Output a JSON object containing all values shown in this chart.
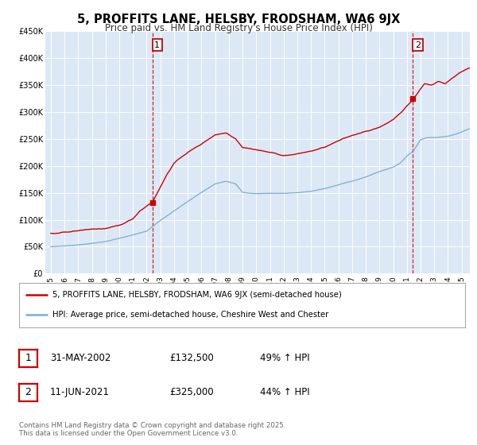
{
  "title": "5, PROFFITS LANE, HELSBY, FRODSHAM, WA6 9JX",
  "subtitle": "Price paid vs. HM Land Registry's House Price Index (HPI)",
  "background_color": "#ffffff",
  "plot_bg_color": "#dce8f5",
  "legend_label_red": "5, PROFFITS LANE, HELSBY, FRODSHAM, WA6 9JX (semi-detached house)",
  "legend_label_blue": "HPI: Average price, semi-detached house, Cheshire West and Chester",
  "red_color": "#cc0000",
  "blue_color": "#7aadd4",
  "dashed_color": "#cc0000",
  "point1_date": "31-MAY-2002",
  "point1_price": 132500,
  "point1_hpi": "49% ↑ HPI",
  "point2_date": "11-JUN-2021",
  "point2_price": 325000,
  "point2_hpi": "44% ↑ HPI",
  "point1_x": 2002.42,
  "point2_x": 2021.44,
  "ylim_max": 450000,
  "xlim_min": 1994.6,
  "xlim_max": 2025.6,
  "footer": "Contains HM Land Registry data © Crown copyright and database right 2025.\nThis data is licensed under the Open Government Licence v3.0.",
  "yticks": [
    0,
    50000,
    100000,
    150000,
    200000,
    250000,
    300000,
    350000,
    400000,
    450000
  ],
  "ytick_labels": [
    "£0",
    "£50K",
    "£100K",
    "£150K",
    "£200K",
    "£250K",
    "£300K",
    "£350K",
    "£400K",
    "£450K"
  ],
  "xticks": [
    1995,
    1996,
    1997,
    1998,
    1999,
    2000,
    2001,
    2002,
    2003,
    2004,
    2005,
    2006,
    2007,
    2008,
    2009,
    2010,
    2011,
    2012,
    2013,
    2014,
    2015,
    2016,
    2017,
    2018,
    2019,
    2020,
    2021,
    2022,
    2023,
    2024,
    2025
  ]
}
